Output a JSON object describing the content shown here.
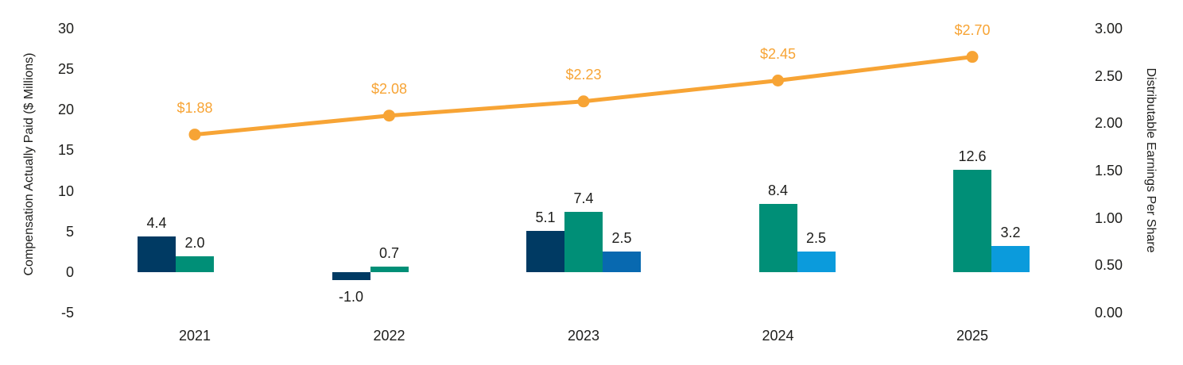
{
  "chart_data": {
    "type": "combo-bar-line",
    "title": "",
    "categories": [
      "2021",
      "2022",
      "2023",
      "2024",
      "2025"
    ],
    "bar_groups": [
      {
        "year": "2021",
        "bars": [
          {
            "slot": 0,
            "value": 4.4,
            "label": "4.4",
            "color": "#003A63"
          },
          {
            "slot": 1,
            "value": 2.0,
            "label": "2.0",
            "color": "#008F77"
          }
        ]
      },
      {
        "year": "2022",
        "bars": [
          {
            "slot": 0,
            "value": -1.0,
            "label": "-1.0",
            "color": "#003A63"
          },
          {
            "slot": 1,
            "value": 0.7,
            "label": "0.7",
            "color": "#008F77"
          }
        ]
      },
      {
        "year": "2023",
        "bars": [
          {
            "slot": 0,
            "value": 5.1,
            "label": "5.1",
            "color": "#003A63"
          },
          {
            "slot": 1,
            "value": 7.4,
            "label": "7.4",
            "color": "#008F77"
          },
          {
            "slot": 2,
            "value": 2.5,
            "label": "2.5",
            "color": "#0869B0"
          }
        ]
      },
      {
        "year": "2024",
        "bars": [
          {
            "slot": 1,
            "value": 8.4,
            "label": "8.4",
            "color": "#008F77"
          },
          {
            "slot": 2,
            "value": 2.5,
            "label": "2.5",
            "color": "#0B9BDC"
          }
        ]
      },
      {
        "year": "2025",
        "bars": [
          {
            "slot": 1,
            "value": 12.6,
            "label": "12.6",
            "color": "#008F77"
          },
          {
            "slot": 2,
            "value": 3.2,
            "label": "3.2",
            "color": "#0B9BDC"
          }
        ]
      }
    ],
    "line_series": {
      "name": "Distributable Earnings Per Share",
      "color": "#F7A435",
      "values": [
        1.88,
        2.08,
        2.23,
        2.45,
        2.7
      ],
      "labels": [
        "$1.88",
        "$2.08",
        "$2.23",
        "$2.45",
        "$2.70"
      ]
    },
    "left_axis": {
      "title": "Compensation Actually Paid ($ Millions)",
      "tick_labels": [
        "30",
        "25",
        "20",
        "15",
        "10",
        "5",
        "0",
        "-5"
      ],
      "tick_values": [
        30,
        25,
        20,
        15,
        10,
        5,
        0,
        -5
      ],
      "range": [
        -5,
        30
      ]
    },
    "right_axis": {
      "title": "Distributable Earnings Per Share",
      "tick_labels": [
        "3.00",
        "2.50",
        "2.00",
        "1.50",
        "1.00",
        "0.50",
        "0.00"
      ],
      "tick_values": [
        3.0,
        2.5,
        2.0,
        1.5,
        1.0,
        0.5,
        0.0
      ],
      "range": [
        0,
        3
      ]
    },
    "grid": false,
    "legend": "none"
  }
}
